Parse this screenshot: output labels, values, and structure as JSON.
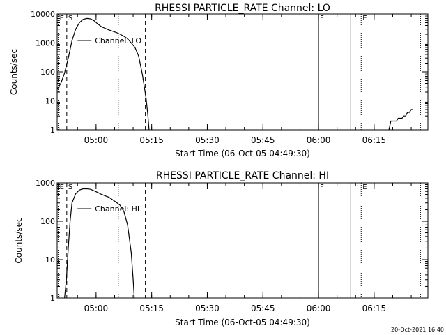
{
  "footer": {
    "timestamp": "20-Oct-2021 16:40"
  },
  "colors": {
    "background": "#ffffff",
    "foreground": "#000000"
  },
  "chart_data": [
    {
      "type": "line",
      "title": "RHESSI PARTICLE_RATE Channel: LO",
      "xlabel": "Start Time (06-Oct-05 04:49:30)",
      "ylabel": "Counts/sec",
      "yscale": "log",
      "x_unit": "minutes_since_04:49:30",
      "xlim": [
        0,
        100
      ],
      "ylim": [
        1,
        10000
      ],
      "x_ticks": [
        {
          "t": 10.5,
          "label": "05:00"
        },
        {
          "t": 25.5,
          "label": "05:15"
        },
        {
          "t": 40.5,
          "label": "05:30"
        },
        {
          "t": 55.5,
          "label": "05:45"
        },
        {
          "t": 70.5,
          "label": "06:00"
        },
        {
          "t": 85.5,
          "label": "06:15"
        }
      ],
      "y_ticks": [
        {
          "v": 1,
          "label": "1"
        },
        {
          "v": 10,
          "label": "10"
        },
        {
          "v": 100,
          "label": "100"
        },
        {
          "v": 1000,
          "label": "1000"
        },
        {
          "v": 10000,
          "label": "10000"
        }
      ],
      "legend": "Channel: LO",
      "series": [
        {
          "name": "Channel: LO",
          "points": [
            [
              0,
              25
            ],
            [
              1,
              40
            ],
            [
              2,
              90
            ],
            [
              3,
              300
            ],
            [
              4,
              1200
            ],
            [
              5,
              3000
            ],
            [
              6,
              5000
            ],
            [
              7,
              6500
            ],
            [
              8,
              7000
            ],
            [
              9,
              6800
            ],
            [
              10,
              5800
            ],
            [
              11,
              4500
            ],
            [
              12,
              3600
            ],
            [
              14,
              2800
            ],
            [
              16,
              2300
            ],
            [
              17,
              2000
            ],
            [
              18,
              1700
            ],
            [
              19,
              1400
            ],
            [
              20,
              1000
            ],
            [
              21,
              700
            ],
            [
              22,
              350
            ],
            [
              23,
              80
            ],
            [
              24,
              12
            ],
            [
              24.5,
              3
            ],
            [
              24.8,
              1
            ]
          ]
        },
        {
          "name": "",
          "points": [
            [
              89.5,
              1
            ],
            [
              90,
              2
            ],
            [
              91.5,
              2
            ],
            [
              92,
              2.5
            ],
            [
              93,
              2.5
            ],
            [
              93.5,
              3
            ],
            [
              94,
              3
            ],
            [
              94.5,
              4
            ],
            [
              95,
              4
            ],
            [
              95.5,
              5
            ],
            [
              96,
              5
            ]
          ]
        }
      ],
      "markers": [
        {
          "t": 0,
          "style": "solid",
          "label": ""
        },
        {
          "t": 0.3,
          "style": "dotted",
          "label": "E"
        },
        {
          "t": 2.6,
          "style": "dashed",
          "label": "S"
        },
        {
          "t": 16.5,
          "style": "dotted",
          "label": ""
        },
        {
          "t": 23.8,
          "style": "dashed",
          "label": ""
        },
        {
          "t": 70.5,
          "style": "solid",
          "label": "F"
        },
        {
          "t": 79.2,
          "style": "solid",
          "label": ""
        },
        {
          "t": 82.0,
          "style": "dotted",
          "label": "E"
        },
        {
          "t": 98.0,
          "style": "dotted",
          "label": ""
        }
      ]
    },
    {
      "type": "line",
      "title": "RHESSI PARTICLE_RATE Channel: HI",
      "xlabel": "Start Time (06-Oct-05 04:49:30)",
      "ylabel": "Counts/sec",
      "yscale": "log",
      "x_unit": "minutes_since_04:49:30",
      "xlim": [
        0,
        100
      ],
      "ylim": [
        1,
        1000
      ],
      "x_ticks": [
        {
          "t": 10.5,
          "label": "05:00"
        },
        {
          "t": 25.5,
          "label": "05:15"
        },
        {
          "t": 40.5,
          "label": "05:30"
        },
        {
          "t": 55.5,
          "label": "05:45"
        },
        {
          "t": 70.5,
          "label": "06:00"
        },
        {
          "t": 85.5,
          "label": "06:15"
        }
      ],
      "y_ticks": [
        {
          "v": 1,
          "label": "1"
        },
        {
          "v": 10,
          "label": "10"
        },
        {
          "v": 100,
          "label": "100"
        },
        {
          "v": 1000,
          "label": "1000"
        }
      ],
      "legend": "Channel: HI",
      "series": [
        {
          "name": "Channel: HI",
          "points": [
            [
              2,
              1
            ],
            [
              2.5,
              3
            ],
            [
              3,
              20
            ],
            [
              3.5,
              100
            ],
            [
              4,
              300
            ],
            [
              5,
              520
            ],
            [
              6,
              650
            ],
            [
              7,
              700
            ],
            [
              8,
              700
            ],
            [
              9,
              680
            ],
            [
              10,
              620
            ],
            [
              11,
              560
            ],
            [
              12,
              500
            ],
            [
              14,
              420
            ],
            [
              15,
              360
            ],
            [
              16,
              310
            ],
            [
              17,
              260
            ],
            [
              18,
              180
            ],
            [
              19,
              80
            ],
            [
              20,
              15
            ],
            [
              20.5,
              3
            ],
            [
              20.8,
              1
            ]
          ]
        }
      ],
      "markers": [
        {
          "t": 0,
          "style": "solid",
          "label": ""
        },
        {
          "t": 0.3,
          "style": "dotted",
          "label": "E"
        },
        {
          "t": 2.6,
          "style": "dashed",
          "label": "S"
        },
        {
          "t": 16.5,
          "style": "dotted",
          "label": ""
        },
        {
          "t": 23.8,
          "style": "dashed",
          "label": ""
        },
        {
          "t": 70.5,
          "style": "solid",
          "label": "F"
        },
        {
          "t": 79.2,
          "style": "solid",
          "label": ""
        },
        {
          "t": 82.0,
          "style": "dotted",
          "label": "E"
        },
        {
          "t": 98.0,
          "style": "dotted",
          "label": ""
        }
      ]
    }
  ]
}
